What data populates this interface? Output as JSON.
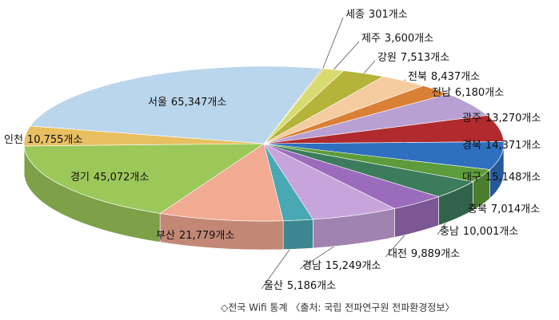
{
  "chart_data": {
    "type": "pie3d",
    "categories": [
      "세종",
      "제주",
      "강원",
      "전북",
      "전남",
      "광주",
      "경북",
      "대구",
      "충북",
      "충남",
      "대전",
      "경남",
      "울산",
      "부산",
      "경기",
      "인천",
      "서울"
    ],
    "values": [
      301,
      3600,
      7513,
      8437,
      6180,
      13270,
      14371,
      15148,
      7014,
      10001,
      9889,
      15249,
      5186,
      21779,
      45072,
      10755,
      65347
    ],
    "value_labels": [
      "301개소",
      "3,600개소",
      "7,513개소",
      "8,437개소",
      "6,180개소",
      "13,270개소",
      "14,371개소",
      "15,148개소",
      "7,014개소",
      "10,001개소",
      "9,889개소",
      "15,249개소",
      "5,186개소",
      "21,779개소",
      "45,072개소",
      "10,755개소",
      "65,347개소"
    ],
    "colors": [
      "#f0a878",
      "#d8dc70",
      "#b4b43a",
      "#f4cca0",
      "#d98036",
      "#b9a0d2",
      "#b02a2e",
      "#2f6fc0",
      "#5c9c3a",
      "#3c7c5c",
      "#9c6cbc",
      "#c8a4dc",
      "#4aa8b4",
      "#f2aa92",
      "#9cc85a",
      "#e8c062",
      "#bad6ec"
    ],
    "caption": "◇전국 Wifi 통계 〈출처: 국립 전파연구원 전파환경정보〉"
  }
}
